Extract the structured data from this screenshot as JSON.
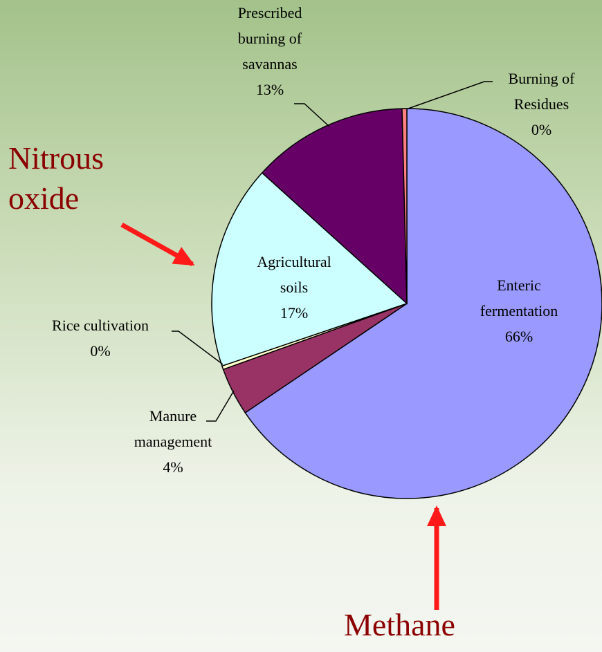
{
  "chart_data": {
    "type": "pie",
    "categories": [
      "Enteric fermentation",
      "Manure management",
      "Rice cultivation",
      "Agricultural soils",
      "Prescribed burning of savannas",
      "Burning of Residues"
    ],
    "values": [
      66,
      4,
      0.3,
      17,
      13,
      0.4
    ],
    "value_labels": [
      "66%",
      "4%",
      "0%",
      "17%",
      "13%",
      "0%"
    ],
    "colors": [
      "#9999ff",
      "#993366",
      "#ffffcc",
      "#ccffff",
      "#660066",
      "#ff8080"
    ],
    "annotations": [
      "Nitrous oxide",
      "Methane"
    ]
  }
}
